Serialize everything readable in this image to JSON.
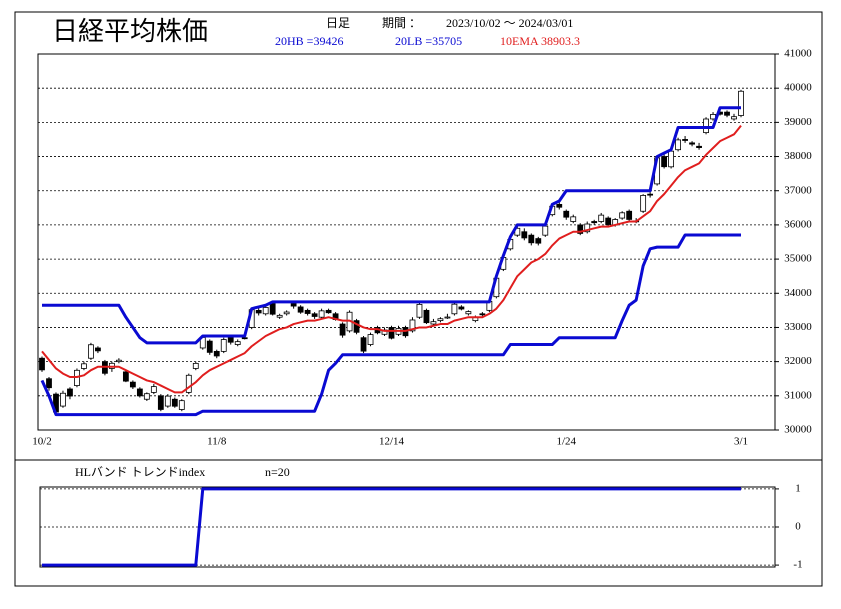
{
  "header": {
    "title": "日経平均株価",
    "timeframe": "日足",
    "period_label": "期間 ：",
    "period": "2023/10/02 ～ 2024/03/01"
  },
  "chart_data": [
    {
      "type": "candlestick",
      "categories": [
        "10/2",
        null,
        null,
        null,
        null,
        null,
        null,
        null,
        null,
        null,
        null,
        null,
        null,
        null,
        null,
        null,
        null,
        null,
        null,
        null,
        null,
        null,
        null,
        null,
        null,
        "11/8",
        null,
        null,
        null,
        null,
        null,
        null,
        null,
        null,
        null,
        null,
        null,
        null,
        null,
        null,
        null,
        null,
        null,
        null,
        null,
        null,
        null,
        null,
        null,
        null,
        "12/14",
        null,
        null,
        null,
        null,
        null,
        null,
        null,
        null,
        null,
        null,
        null,
        null,
        null,
        null,
        null,
        null,
        null,
        null,
        null,
        null,
        null,
        null,
        null,
        null,
        "1/24",
        null,
        null,
        null,
        null,
        null,
        null,
        null,
        null,
        null,
        null,
        null,
        null,
        null,
        null,
        null,
        null,
        null,
        null,
        null,
        null,
        null,
        null,
        null,
        null,
        "3/1"
      ],
      "open": [
        32100,
        31500,
        31050,
        30700,
        31200,
        31300,
        31800,
        32100,
        32400,
        32000,
        31800,
        32000,
        31700,
        31400,
        31200,
        30900,
        31100,
        31000,
        30700,
        30900,
        30600,
        31100,
        31800,
        32400,
        32600,
        32300,
        32300,
        32700,
        32500,
        32700,
        33000,
        33500,
        33400,
        33700,
        33300,
        33400,
        33700,
        33600,
        33500,
        33400,
        33300,
        33500,
        33400,
        33100,
        32900,
        33200,
        32700,
        32500,
        33000,
        32800,
        33000,
        32800,
        33000,
        32900,
        33300,
        33500,
        33100,
        33200,
        33300,
        33400,
        33600,
        33400,
        33200,
        33400,
        33500,
        33900,
        34700,
        35300,
        35700,
        35800,
        35700,
        35600,
        35700,
        36300,
        36600,
        36400,
        36100,
        36000,
        35800,
        36100,
        36100,
        36200,
        36000,
        36200,
        36400,
        36100,
        36400,
        36900,
        37200,
        38000,
        37700,
        38200,
        38500,
        38400,
        38300,
        38700,
        39100,
        39300,
        39300,
        39100,
        39200
      ],
      "high": [
        32150,
        31550,
        31100,
        31150,
        31250,
        31800,
        32000,
        32550,
        32450,
        32050,
        32000,
        32100,
        31750,
        31450,
        31250,
        31100,
        31350,
        31050,
        31050,
        30950,
        30900,
        31650,
        32000,
        32750,
        32650,
        32350,
        32700,
        32750,
        32650,
        32750,
        33550,
        33600,
        33650,
        33750,
        33400,
        33500,
        33750,
        33650,
        33550,
        33450,
        33550,
        33550,
        33450,
        33150,
        33500,
        33250,
        32750,
        32850,
        33050,
        33000,
        33050,
        33050,
        33050,
        33300,
        33750,
        33550,
        33250,
        33300,
        33400,
        33750,
        33650,
        33500,
        33350,
        33450,
        33800,
        34500,
        35100,
        35650,
        36000,
        35900,
        35750,
        35650,
        36000,
        36600,
        36700,
        36450,
        36300,
        36050,
        36100,
        36150,
        36350,
        36250,
        36200,
        36400,
        36450,
        36200,
        36900,
        37000,
        38000,
        38100,
        38200,
        38550,
        38600,
        38450,
        38400,
        39150,
        39300,
        39400,
        39350,
        39250,
        39950
      ],
      "low": [
        31700,
        31150,
        30450,
        30650,
        30900,
        31250,
        31750,
        32050,
        32250,
        31600,
        31700,
        31950,
        31400,
        31200,
        30950,
        30850,
        31050,
        30550,
        30650,
        30650,
        30550,
        31050,
        31750,
        32350,
        32200,
        32100,
        32250,
        32500,
        32450,
        32650,
        32950,
        33350,
        33350,
        33350,
        33250,
        33350,
        33550,
        33400,
        33350,
        33250,
        33250,
        33400,
        33200,
        32700,
        32850,
        32800,
        32250,
        32450,
        32800,
        32750,
        32650,
        32750,
        32700,
        32850,
        33250,
        33100,
        33050,
        33150,
        33250,
        33350,
        33500,
        33350,
        33150,
        33300,
        33450,
        33850,
        34650,
        35250,
        35650,
        35550,
        35400,
        35400,
        35650,
        36250,
        36450,
        36150,
        36050,
        35700,
        35750,
        36000,
        36050,
        35950,
        35950,
        36150,
        36100,
        36050,
        36350,
        36800,
        37150,
        37650,
        37650,
        38150,
        38400,
        38300,
        38200,
        38650,
        39050,
        39200,
        39150,
        39050,
        39150
      ],
      "close": [
        31759,
        31237,
        30526,
        31075,
        30994,
        31746,
        31936,
        32494,
        32315,
        31659,
        31951,
        32042,
        31430,
        31259,
        30999,
        31062,
        31269,
        30601,
        30991,
        30696,
        30858,
        31601,
        31949,
        32708,
        32271,
        32166,
        32646,
        32568,
        32585,
        32695,
        33519,
        33424,
        33585,
        33388,
        33354,
        33451,
        33625,
        33447,
        33408,
        33321,
        33486,
        33431,
        33231,
        32775,
        33445,
        32858,
        32307,
        32791,
        32843,
        32926,
        32686,
        32970,
        32758,
        33219,
        33675,
        33140,
        33169,
        33255,
        33305,
        33681,
        33539,
        33464,
        33288,
        33377,
        33763,
        34441,
        35049,
        35577,
        35901,
        35619,
        35477,
        35466,
        35963,
        36546,
        36517,
        36226,
        36236,
        35751,
        36026,
        36065,
        36286,
        36011,
        36158,
        36354,
        36160,
        36119,
        36863,
        36897,
        37963,
        37703,
        38157,
        38487,
        38470,
        38363,
        38262,
        39098,
        39233,
        39239,
        39208,
        39166,
        39910
      ],
      "up_color": "#ffffff",
      "down_color": "#000000",
      "series": [
        {
          "name": "20HB =39426",
          "color": "#0a0ad2",
          "values": [
            33650,
            33650,
            33650,
            33650,
            33650,
            33650,
            33650,
            33650,
            33650,
            33650,
            33650,
            33650,
            33300,
            33000,
            32700,
            32550,
            32550,
            32550,
            32550,
            32550,
            32550,
            32550,
            32550,
            32750,
            32750,
            32750,
            32750,
            32750,
            32750,
            32750,
            33550,
            33600,
            33650,
            33750,
            33750,
            33750,
            33750,
            33750,
            33750,
            33750,
            33750,
            33750,
            33750,
            33750,
            33750,
            33750,
            33750,
            33750,
            33750,
            33750,
            33750,
            33750,
            33750,
            33750,
            33750,
            33750,
            33750,
            33750,
            33750,
            33750,
            33750,
            33750,
            33750,
            33750,
            33750,
            34500,
            35100,
            35650,
            36000,
            36000,
            36000,
            36000,
            36000,
            36600,
            36700,
            37000,
            37000,
            37000,
            37000,
            37000,
            37000,
            37000,
            37000,
            37000,
            37000,
            37000,
            37000,
            37000,
            38000,
            38100,
            38200,
            38850,
            38850,
            38850,
            38850,
            38850,
            38850,
            39426,
            39426,
            39426,
            39426
          ]
        },
        {
          "name": "20LB =35705",
          "color": "#0a0ad2",
          "values": [
            31450,
            31000,
            30450,
            30450,
            30450,
            30450,
            30450,
            30450,
            30450,
            30450,
            30450,
            30450,
            30450,
            30450,
            30450,
            30450,
            30450,
            30450,
            30450,
            30450,
            30450,
            30450,
            30450,
            30550,
            30550,
            30550,
            30550,
            30550,
            30550,
            30550,
            30550,
            30550,
            30550,
            30550,
            30550,
            30550,
            30550,
            30550,
            30550,
            30550,
            31050,
            31750,
            31950,
            32200,
            32200,
            32200,
            32200,
            32200,
            32200,
            32200,
            32200,
            32200,
            32200,
            32200,
            32200,
            32200,
            32200,
            32200,
            32200,
            32200,
            32200,
            32200,
            32200,
            32200,
            32200,
            32200,
            32200,
            32500,
            32500,
            32500,
            32500,
            32500,
            32500,
            32500,
            32700,
            32700,
            32700,
            32700,
            32700,
            32700,
            32700,
            32700,
            32700,
            33200,
            33650,
            33800,
            34800,
            35300,
            35350,
            35350,
            35350,
            35350,
            35705,
            35705,
            35705,
            35705,
            35705,
            35705,
            35705,
            35705,
            35705
          ]
        },
        {
          "name": "10EMA 38903.3",
          "color": "#e01e1e",
          "values": [
            32300,
            32050,
            31800,
            31650,
            31550,
            31550,
            31600,
            31750,
            31850,
            31850,
            31850,
            31850,
            31750,
            31650,
            31550,
            31450,
            31400,
            31300,
            31200,
            31100,
            31100,
            31250,
            31400,
            31600,
            31750,
            31850,
            31950,
            32050,
            32150,
            32250,
            32450,
            32600,
            32750,
            32850,
            32950,
            33000,
            33100,
            33150,
            33200,
            33200,
            33250,
            33300,
            33250,
            33200,
            33200,
            33100,
            33000,
            32950,
            32950,
            32900,
            32900,
            32900,
            32900,
            32950,
            33000,
            33000,
            33050,
            33100,
            33100,
            33200,
            33250,
            33300,
            33300,
            33300,
            33400,
            33550,
            33800,
            34150,
            34500,
            34700,
            34900,
            35000,
            35150,
            35400,
            35600,
            35700,
            35800,
            35800,
            35850,
            35900,
            35950,
            35950,
            36000,
            36050,
            36100,
            36100,
            36250,
            36400,
            36700,
            36900,
            37150,
            37400,
            37600,
            37700,
            37800,
            38050,
            38250,
            38450,
            38550,
            38650,
            38903.3
          ]
        }
      ],
      "ylim": [
        30000,
        41000
      ],
      "yticks": [
        30000,
        31000,
        32000,
        33000,
        34000,
        35000,
        36000,
        37000,
        38000,
        39000,
        40000,
        41000
      ],
      "grid": true
    },
    {
      "type": "line",
      "title": "HLバンド トレンドindex",
      "subtitle": "n=20",
      "series": [
        {
          "color": "#0a0ad2",
          "values": [
            -1,
            -1,
            -1,
            -1,
            -1,
            -1,
            -1,
            -1,
            -1,
            -1,
            -1,
            -1,
            -1,
            -1,
            -1,
            -1,
            -1,
            -1,
            -1,
            -1,
            -1,
            -1,
            -1,
            1,
            1,
            1,
            1,
            1,
            1,
            1,
            1,
            1,
            1,
            1,
            1,
            1,
            1,
            1,
            1,
            1,
            1,
            1,
            1,
            1,
            1,
            1,
            1,
            1,
            1,
            1,
            1,
            1,
            1,
            1,
            1,
            1,
            1,
            1,
            1,
            1,
            1,
            1,
            1,
            1,
            1,
            1,
            1,
            1,
            1,
            1,
            1,
            1,
            1,
            1,
            1,
            1,
            1,
            1,
            1,
            1,
            1,
            1,
            1,
            1,
            1,
            1,
            1,
            1,
            1,
            1,
            1,
            1,
            1,
            1,
            1,
            1,
            1,
            1,
            1,
            1,
            1
          ]
        }
      ],
      "ylim": [
        -1.05,
        1.05
      ],
      "yticks": [
        1,
        0,
        -1
      ],
      "grid": true
    }
  ]
}
